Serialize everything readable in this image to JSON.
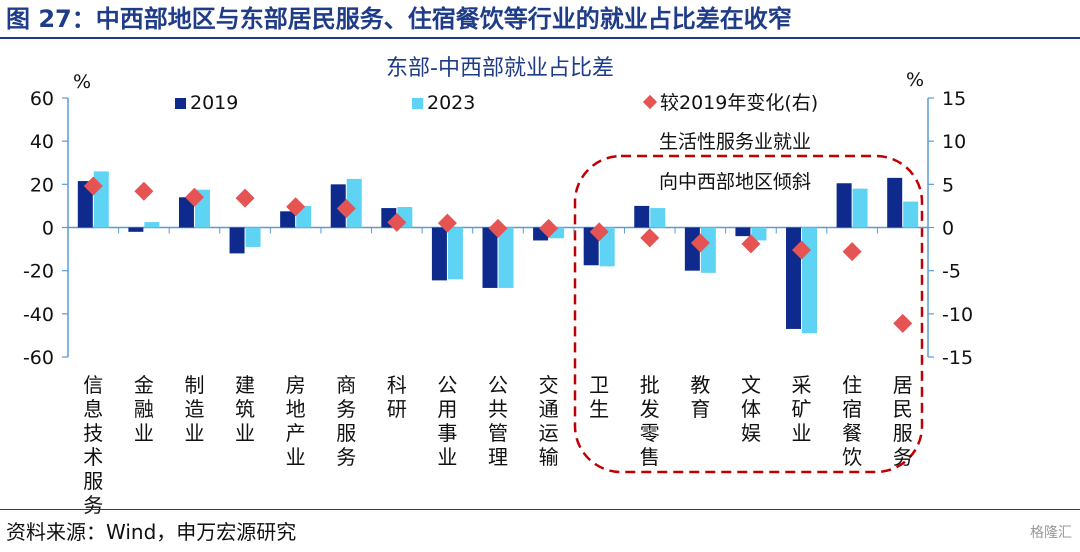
{
  "figure_title": "图 27：中西部地区与东部居民服务、住宿餐饮等行业的就业占比差在收窄",
  "source": "资料来源：Wind，申万宏源研究",
  "watermark": "格隆汇",
  "colors": {
    "s2019": "#0d2a8c",
    "s2023": "#5fd3f3",
    "change": "#e55353",
    "title": "#1f3c88",
    "axis": "#5b9bd5",
    "circle": "#c00000"
  },
  "chart_data": {
    "type": "bar",
    "title": "东部-中西部就业占比差",
    "ylabel_left": "%",
    "ylabel_right": "%",
    "ylim_left": [
      -60,
      60
    ],
    "ylim_right": [
      -15,
      15
    ],
    "yticks_left": [
      "60",
      "40",
      "20",
      "0",
      "-20",
      "-40",
      "-60"
    ],
    "yticks_right": [
      "15",
      "10",
      "5",
      "0",
      "-5",
      "-10",
      "-15"
    ],
    "categories": [
      "信息技术服务",
      "金融业",
      "制造业",
      "建筑业",
      "房地产业",
      "商务服务",
      "科研",
      "公用事业",
      "公共管理",
      "交通运输",
      "卫生",
      "批发零售",
      "教育",
      "文体娱",
      "采矿业",
      "住宿餐饮",
      "居民服务"
    ],
    "series": [
      {
        "name": "2019",
        "type": "bar",
        "axis": "left",
        "values": [
          21.5,
          -2,
          14,
          -12,
          7.5,
          20,
          9,
          -24.5,
          -28,
          -6,
          -17.5,
          10,
          -20,
          -4,
          -47,
          20.5,
          23
        ]
      },
      {
        "name": "2023",
        "type": "bar",
        "axis": "left",
        "values": [
          26,
          2.5,
          17.5,
          -9,
          10,
          22.5,
          9.5,
          -24,
          -28,
          -5,
          -18,
          9,
          -21,
          -6,
          -49,
          18,
          12
        ]
      },
      {
        "name": "较2019年变化(右)",
        "type": "scatter",
        "axis": "right",
        "values": [
          4.8,
          4.2,
          3.5,
          3.4,
          2.4,
          2.2,
          0.6,
          0.5,
          -0.1,
          -0.1,
          -0.5,
          -1.2,
          -1.8,
          -1.9,
          -2.6,
          -2.8,
          -11.1
        ]
      }
    ],
    "legend_position": "top",
    "annotation": {
      "line1": "生活性服务业就业",
      "line2": "向中西部地区倾斜"
    }
  }
}
